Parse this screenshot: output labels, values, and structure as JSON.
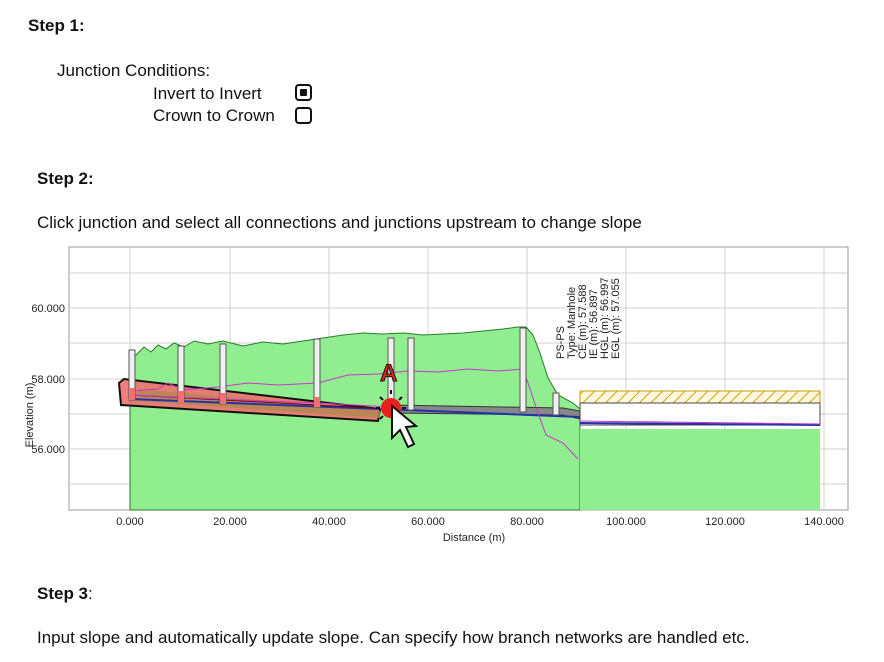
{
  "step1": {
    "heading": "Step 1:",
    "junction_title": "Junction Conditions:",
    "options": [
      {
        "label": "Invert to Invert",
        "checked": true
      },
      {
        "label": "Crown to Crown",
        "checked": false
      }
    ]
  },
  "step2": {
    "heading": "Step 2:",
    "instruction": "Click junction and select all connections and junctions upstream to change slope"
  },
  "step3": {
    "heading": "Step 3",
    "heading_suffix": ":",
    "instruction": "Input slope and automatically update slope. Can specify how branch networks are handled etc."
  },
  "profile": {
    "xlabel": "Distance (m)",
    "ylabel": "Elevation (m)",
    "x_ticks": [
      "0.000",
      "20.000",
      "40.000",
      "60.000",
      "80.000",
      "100.000",
      "120.000",
      "140.000"
    ],
    "y_ticks": [
      "60.000",
      "58.000",
      "56.000"
    ],
    "marker_label": "A",
    "node_info": [
      "PS-PS",
      "Type: Manhole",
      "CE (m): 57.588",
      "IE (m): 56.897",
      "HGL (m): 56.997",
      "EGL (m): 57.055"
    ],
    "colors": {
      "ground": "#90ee90",
      "selection": "#f07070",
      "marker": "#e82020",
      "hgl": "#cc33cc",
      "pipe": "#2233aa"
    }
  }
}
